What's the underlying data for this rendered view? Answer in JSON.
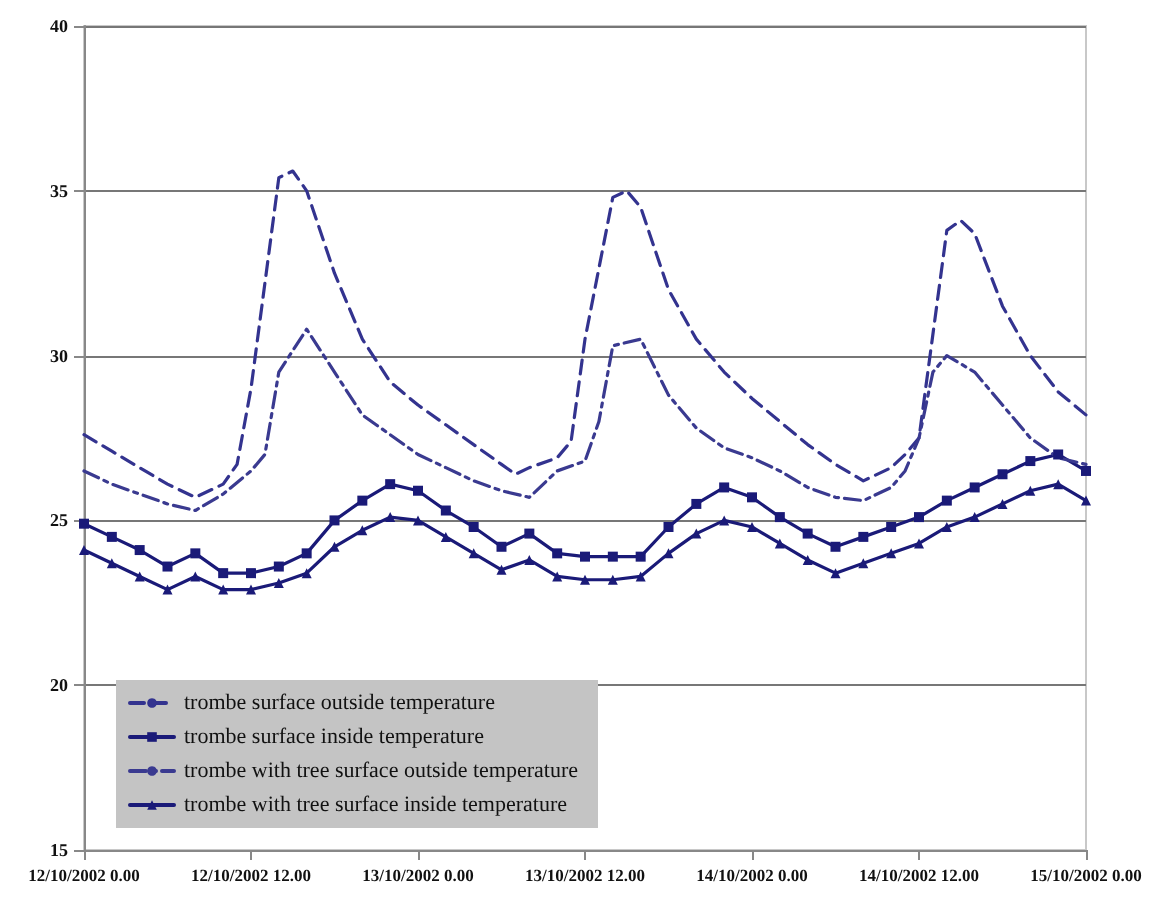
{
  "chart_data": {
    "type": "line",
    "ylim": [
      15,
      40
    ],
    "yticks": [
      15,
      20,
      25,
      30,
      35,
      40
    ],
    "xlim": [
      "2002-10-12T00:00",
      "2002-10-15T00:00"
    ],
    "xticks": [
      {
        "value": "2002-10-12T00:00",
        "label": "12/10/2002 0.00"
      },
      {
        "value": "2002-10-12T12:00",
        "label": "12/10/2002 12.00"
      },
      {
        "value": "2002-10-13T00:00",
        "label": "13/10/2002 0.00"
      },
      {
        "value": "2002-10-13T12:00",
        "label": "13/10/2002 12.00"
      },
      {
        "value": "2002-10-14T00:00",
        "label": "14/10/2002 0.00"
      },
      {
        "value": "2002-10-14T12:00",
        "label": "14/10/2002 12.00"
      },
      {
        "value": "2002-10-15T00:00",
        "label": "15/10/2002 0.00"
      }
    ],
    "grid": "y",
    "legend": "bottom left",
    "series": [
      {
        "name": "trombe surface outside temperature",
        "color": "#33338f",
        "line_style": "dashed",
        "marker": "none",
        "x": [
          "2002-10-12T00:00",
          "2002-10-12T02:00",
          "2002-10-12T04:00",
          "2002-10-12T06:00",
          "2002-10-12T08:00",
          "2002-10-12T10:00",
          "2002-10-12T11:00",
          "2002-10-12T12:00",
          "2002-10-12T14:00",
          "2002-10-12T15:00",
          "2002-10-12T16:00",
          "2002-10-12T18:00",
          "2002-10-12T20:00",
          "2002-10-12T22:00",
          "2002-10-13T00:00",
          "2002-10-13T02:00",
          "2002-10-13T04:00",
          "2002-10-13T06:00",
          "2002-10-13T07:00",
          "2002-10-13T08:00",
          "2002-10-13T10:00",
          "2002-10-13T11:00",
          "2002-10-13T12:00",
          "2002-10-13T14:00",
          "2002-10-13T15:00",
          "2002-10-13T16:00",
          "2002-10-13T18:00",
          "2002-10-13T20:00",
          "2002-10-13T22:00",
          "2002-10-14T00:00",
          "2002-10-14T02:00",
          "2002-10-14T04:00",
          "2002-10-14T06:00",
          "2002-10-14T08:00",
          "2002-10-14T10:00",
          "2002-10-14T11:00",
          "2002-10-14T12:00",
          "2002-10-14T14:00",
          "2002-10-14T15:00",
          "2002-10-14T16:00",
          "2002-10-14T18:00",
          "2002-10-14T20:00",
          "2002-10-14T22:00",
          "2002-10-15T00:00"
        ],
        "values": [
          27.6,
          27.1,
          26.6,
          26.1,
          25.7,
          26.1,
          26.7,
          29.0,
          35.4,
          35.6,
          35.0,
          32.5,
          30.5,
          29.2,
          28.5,
          27.9,
          27.3,
          26.7,
          26.4,
          26.6,
          26.9,
          27.4,
          30.5,
          34.8,
          35.0,
          34.5,
          32.0,
          30.5,
          29.5,
          28.7,
          28.0,
          27.3,
          26.7,
          26.2,
          26.6,
          27.0,
          27.5,
          33.8,
          34.1,
          33.7,
          31.5,
          30.0,
          28.9,
          28.2
        ]
      },
      {
        "name": "trombe surface inside temperature",
        "color": "#1a1a78",
        "line_style": "solid",
        "marker": "square",
        "x": [
          "2002-10-12T00:00",
          "2002-10-12T02:00",
          "2002-10-12T04:00",
          "2002-10-12T06:00",
          "2002-10-12T08:00",
          "2002-10-12T10:00",
          "2002-10-12T12:00",
          "2002-10-12T14:00",
          "2002-10-12T16:00",
          "2002-10-12T18:00",
          "2002-10-12T20:00",
          "2002-10-12T22:00",
          "2002-10-13T00:00",
          "2002-10-13T02:00",
          "2002-10-13T04:00",
          "2002-10-13T06:00",
          "2002-10-13T08:00",
          "2002-10-13T10:00",
          "2002-10-13T12:00",
          "2002-10-13T14:00",
          "2002-10-13T16:00",
          "2002-10-13T18:00",
          "2002-10-13T20:00",
          "2002-10-13T22:00",
          "2002-10-14T00:00",
          "2002-10-14T02:00",
          "2002-10-14T04:00",
          "2002-10-14T06:00",
          "2002-10-14T08:00",
          "2002-10-14T10:00",
          "2002-10-14T12:00",
          "2002-10-14T14:00",
          "2002-10-14T16:00",
          "2002-10-14T18:00",
          "2002-10-14T20:00",
          "2002-10-14T22:00",
          "2002-10-15T00:00"
        ],
        "values": [
          24.9,
          24.5,
          24.1,
          23.6,
          24.0,
          23.4,
          23.4,
          23.6,
          24.0,
          25.0,
          25.6,
          26.1,
          25.9,
          25.3,
          24.8,
          24.2,
          24.6,
          24.0,
          23.9,
          23.9,
          23.9,
          24.8,
          25.5,
          26.0,
          25.7,
          25.1,
          24.6,
          24.2,
          24.5,
          24.8,
          25.1,
          25.6,
          26.0,
          26.4,
          26.8,
          27.0,
          26.5
        ]
      },
      {
        "name": "trombe with tree surface outside temperature",
        "color": "#3a3a90",
        "line_style": "dotted",
        "marker": "none",
        "x": [
          "2002-10-12T00:00",
          "2002-10-12T02:00",
          "2002-10-12T04:00",
          "2002-10-12T06:00",
          "2002-10-12T08:00",
          "2002-10-12T10:00",
          "2002-10-12T12:00",
          "2002-10-12T13:00",
          "2002-10-12T14:00",
          "2002-10-12T16:00",
          "2002-10-12T18:00",
          "2002-10-12T20:00",
          "2002-10-12T22:00",
          "2002-10-13T00:00",
          "2002-10-13T02:00",
          "2002-10-13T04:00",
          "2002-10-13T06:00",
          "2002-10-13T08:00",
          "2002-10-13T10:00",
          "2002-10-13T12:00",
          "2002-10-13T13:00",
          "2002-10-13T14:00",
          "2002-10-13T16:00",
          "2002-10-13T18:00",
          "2002-10-13T20:00",
          "2002-10-13T22:00",
          "2002-10-14T00:00",
          "2002-10-14T02:00",
          "2002-10-14T04:00",
          "2002-10-14T06:00",
          "2002-10-14T08:00",
          "2002-10-14T10:00",
          "2002-10-14T11:00",
          "2002-10-14T12:00",
          "2002-10-14T13:00",
          "2002-10-14T14:00",
          "2002-10-14T16:00",
          "2002-10-14T18:00",
          "2002-10-14T20:00",
          "2002-10-14T22:00",
          "2002-10-15T00:00"
        ],
        "values": [
          26.5,
          26.1,
          25.8,
          25.5,
          25.3,
          25.8,
          26.5,
          27.0,
          29.5,
          30.8,
          29.5,
          28.2,
          27.6,
          27.0,
          26.6,
          26.2,
          25.9,
          25.7,
          26.5,
          26.8,
          28.0,
          30.3,
          30.5,
          28.8,
          27.8,
          27.2,
          26.9,
          26.5,
          26.0,
          25.7,
          25.6,
          26.0,
          26.5,
          27.5,
          29.5,
          30.0,
          29.5,
          28.5,
          27.5,
          26.9,
          26.7
        ]
      },
      {
        "name": "trombe with tree surface inside temperature",
        "color": "#1a1a78",
        "line_style": "solid",
        "marker": "triangle",
        "x": [
          "2002-10-12T00:00",
          "2002-10-12T02:00",
          "2002-10-12T04:00",
          "2002-10-12T06:00",
          "2002-10-12T08:00",
          "2002-10-12T10:00",
          "2002-10-12T12:00",
          "2002-10-12T14:00",
          "2002-10-12T16:00",
          "2002-10-12T18:00",
          "2002-10-12T20:00",
          "2002-10-12T22:00",
          "2002-10-13T00:00",
          "2002-10-13T02:00",
          "2002-10-13T04:00",
          "2002-10-13T06:00",
          "2002-10-13T08:00",
          "2002-10-13T10:00",
          "2002-10-13T12:00",
          "2002-10-13T14:00",
          "2002-10-13T16:00",
          "2002-10-13T18:00",
          "2002-10-13T20:00",
          "2002-10-13T22:00",
          "2002-10-14T00:00",
          "2002-10-14T02:00",
          "2002-10-14T04:00",
          "2002-10-14T06:00",
          "2002-10-14T08:00",
          "2002-10-14T10:00",
          "2002-10-14T12:00",
          "2002-10-14T14:00",
          "2002-10-14T16:00",
          "2002-10-14T18:00",
          "2002-10-14T20:00",
          "2002-10-14T22:00",
          "2002-10-15T00:00"
        ],
        "values": [
          24.1,
          23.7,
          23.3,
          22.9,
          23.3,
          22.9,
          22.9,
          23.1,
          23.4,
          24.2,
          24.7,
          25.1,
          25.0,
          24.5,
          24.0,
          23.5,
          23.8,
          23.3,
          23.2,
          23.2,
          23.3,
          24.0,
          24.6,
          25.0,
          24.8,
          24.3,
          23.8,
          23.4,
          23.7,
          24.0,
          24.3,
          24.8,
          25.1,
          25.5,
          25.9,
          26.1,
          25.6
        ]
      }
    ]
  }
}
